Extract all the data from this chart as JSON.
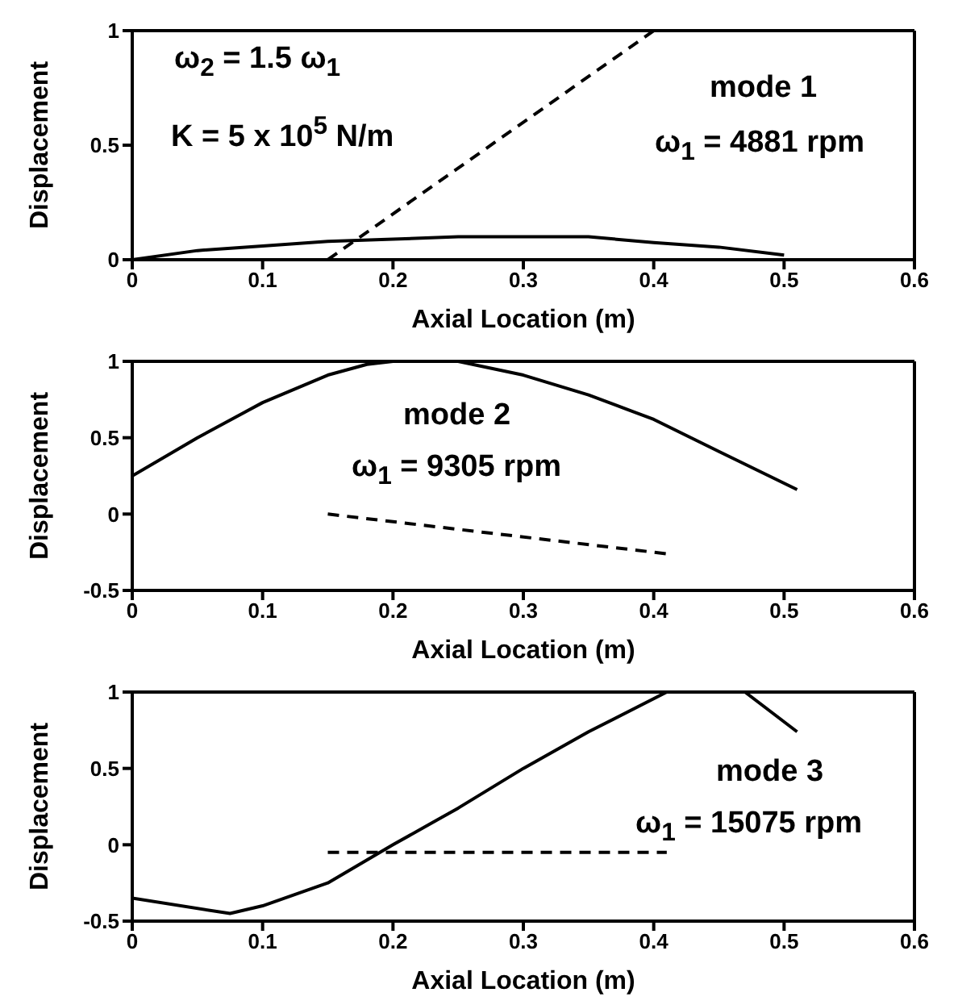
{
  "chart_data": [
    {
      "type": "line",
      "xlabel": "Axial Location (m)",
      "ylabel": "Displacement",
      "xlim": [
        0,
        0.6
      ],
      "xticks": [
        0,
        0.1,
        0.2,
        0.3,
        0.4,
        0.5,
        0.6
      ],
      "ylim": [
        0,
        1
      ],
      "yticks": [
        0,
        0.5,
        1
      ],
      "marker": "none",
      "annotations": [
        "ω$_{2}$ = 1.5 ω$_{1}$",
        "K = 5 x 10$^{5}$ N/m",
        "mode 1",
        "ω$_{1}$ = 4881 rpm"
      ],
      "series": [
        {
          "color": "#000000",
          "line_style": "solid",
          "x": [
            0,
            0.05,
            0.1,
            0.15,
            0.2,
            0.25,
            0.3,
            0.35,
            0.4,
            0.45,
            0.5
          ],
          "values": [
            0,
            0.04,
            0.06,
            0.08,
            0.09,
            0.1,
            0.1,
            0.1,
            0.075,
            0.055,
            0.02
          ]
        },
        {
          "color": "#000000",
          "line_style": "dashed",
          "x": [
            0.15,
            0.4
          ],
          "values": [
            0,
            1
          ]
        }
      ]
    },
    {
      "type": "line",
      "xlabel": "Axial Location (m)",
      "ylabel": "Displacement",
      "xlim": [
        0,
        0.6
      ],
      "xticks": [
        0,
        0.1,
        0.2,
        0.3,
        0.4,
        0.5,
        0.6
      ],
      "ylim": [
        -0.5,
        1
      ],
      "yticks": [
        -0.5,
        0,
        0.5,
        1
      ],
      "marker": "none",
      "annotations": [
        "mode 2",
        "ω$_{1}$ = 9305 rpm"
      ],
      "series": [
        {
          "color": "#000000",
          "line_style": "solid",
          "x": [
            0,
            0.05,
            0.1,
            0.15,
            0.18,
            0.2,
            0.25,
            0.3,
            0.35,
            0.4,
            0.45,
            0.51
          ],
          "values": [
            0.25,
            0.5,
            0.73,
            0.91,
            0.98,
            1,
            1,
            0.91,
            0.78,
            0.62,
            0.41,
            0.16
          ]
        },
        {
          "color": "#000000",
          "line_style": "dashed",
          "x": [
            0.15,
            0.41
          ],
          "values": [
            0,
            -0.26
          ]
        }
      ]
    },
    {
      "type": "line",
      "xlabel": "Axial Location (m)",
      "ylabel": "Displacement",
      "xlim": [
        0,
        0.6
      ],
      "xticks": [
        0,
        0.1,
        0.2,
        0.3,
        0.4,
        0.5,
        0.6
      ],
      "ylim": [
        -0.5,
        1
      ],
      "yticks": [
        -0.5,
        0,
        0.5,
        1
      ],
      "marker": "none",
      "annotations": [
        "mode 3",
        "ω$_{1}$ = 15075 rpm"
      ],
      "series": [
        {
          "color": "#000000",
          "line_style": "solid",
          "x": [
            0,
            0.075,
            0.1,
            0.15,
            0.2,
            0.25,
            0.3,
            0.35,
            0.41,
            0.47,
            0.51
          ],
          "values": [
            -0.35,
            -0.45,
            -0.4,
            -0.25,
            0,
            0.24,
            0.5,
            0.74,
            1,
            1,
            0.74
          ]
        },
        {
          "color": "#000000",
          "line_style": "dashed",
          "x": [
            0.15,
            0.41
          ],
          "values": [
            -0.05,
            -0.05
          ]
        }
      ]
    }
  ]
}
